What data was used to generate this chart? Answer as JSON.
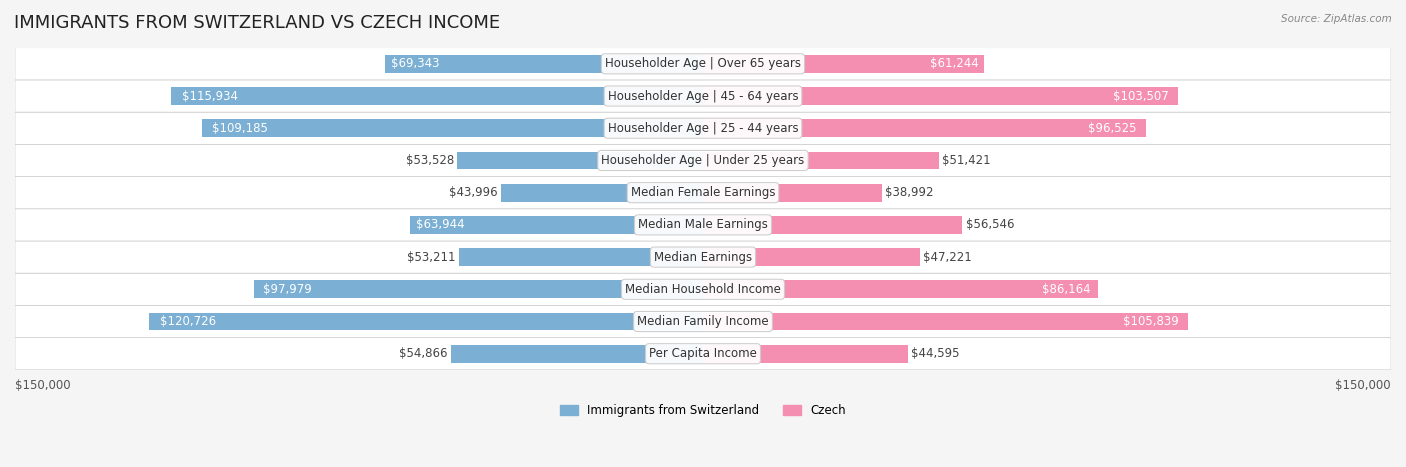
{
  "title": "IMMIGRANTS FROM SWITZERLAND VS CZECH INCOME",
  "source": "Source: ZipAtlas.com",
  "categories": [
    "Per Capita Income",
    "Median Family Income",
    "Median Household Income",
    "Median Earnings",
    "Median Male Earnings",
    "Median Female Earnings",
    "Householder Age | Under 25 years",
    "Householder Age | 25 - 44 years",
    "Householder Age | 45 - 64 years",
    "Householder Age | Over 65 years"
  ],
  "swiss_values": [
    54866,
    120726,
    97979,
    53211,
    63944,
    43996,
    53528,
    109185,
    115934,
    69343
  ],
  "czech_values": [
    44595,
    105839,
    86164,
    47221,
    56546,
    38992,
    51421,
    96525,
    103507,
    61244
  ],
  "swiss_labels": [
    "$54,866",
    "$120,726",
    "$97,979",
    "$53,211",
    "$63,944",
    "$43,996",
    "$53,528",
    "$109,185",
    "$115,934",
    "$69,343"
  ],
  "czech_labels": [
    "$44,595",
    "$105,839",
    "$86,164",
    "$47,221",
    "$56,546",
    "$38,992",
    "$51,421",
    "$96,525",
    "$103,507",
    "$61,244"
  ],
  "swiss_color": "#7bafd4",
  "czech_color": "#f48fb1",
  "swiss_color_dark": "#5b9ac4",
  "czech_color_dark": "#e879a0",
  "max_value": 150000,
  "x_label_left": "$150,000",
  "x_label_right": "$150,000",
  "legend_swiss": "Immigrants from Switzerland",
  "legend_czech": "Czech",
  "background_color": "#f5f5f5",
  "row_bg_color": "#ffffff",
  "bar_height": 0.55,
  "title_fontsize": 13,
  "label_fontsize": 8.5,
  "category_fontsize": 8.5
}
